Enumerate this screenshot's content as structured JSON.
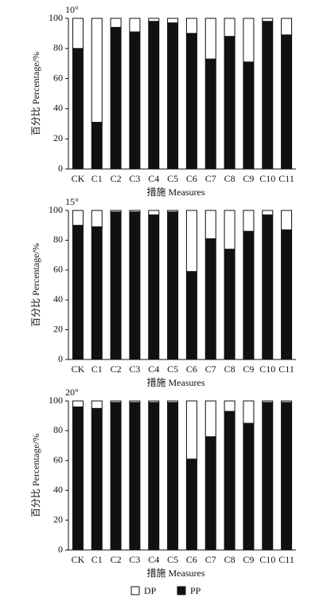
{
  "chart_data": [
    {
      "type": "bar",
      "stacked": true,
      "annotation": "10°",
      "x_label": "措施 Measures",
      "y_label": "百分比 Percentage/%",
      "categories": [
        "CK",
        "C1",
        "C2",
        "C3",
        "C4",
        "C5",
        "C6",
        "C7",
        "C8",
        "C9",
        "C10",
        "C11"
      ],
      "series": [
        {
          "color": "#111111",
          "values": [
            80,
            31,
            94,
            91,
            98,
            97,
            90,
            73,
            88,
            71,
            98,
            89
          ]
        },
        {
          "color": "#ffffff",
          "values": [
            20,
            69,
            6,
            9,
            2,
            3,
            10,
            27,
            12,
            29,
            2,
            11
          ]
        }
      ],
      "ylim": [
        0,
        100
      ],
      "yticks": [
        0,
        20,
        40,
        60,
        80,
        100
      ]
    },
    {
      "type": "bar",
      "stacked": true,
      "annotation": "15°",
      "x_label": "措施 Measures",
      "y_label": "百分比 Percentage/%",
      "categories": [
        "CK",
        "C1",
        "C2",
        "C3",
        "C4",
        "C5",
        "C6",
        "C7",
        "C8",
        "C9",
        "C10",
        "C11"
      ],
      "series": [
        {
          "color": "#111111",
          "values": [
            90,
            89,
            99,
            99,
            97,
            99,
            59,
            81,
            74,
            86,
            97,
            87
          ]
        },
        {
          "color": "#ffffff",
          "values": [
            10,
            11,
            1,
            1,
            3,
            1,
            41,
            19,
            26,
            14,
            3,
            13
          ]
        }
      ],
      "ylim": [
        0,
        100
      ],
      "yticks": [
        0,
        20,
        40,
        60,
        80,
        100
      ]
    },
    {
      "type": "bar",
      "stacked": true,
      "annotation": "20°",
      "x_label": "措施 Measures",
      "y_label": "百分比 Percentage/%",
      "categories": [
        "CK",
        "C1",
        "C2",
        "C3",
        "C4",
        "C5",
        "C6",
        "C7",
        "C8",
        "C9",
        "C10",
        "C11"
      ],
      "series": [
        {
          "name": "PP",
          "color": "#111111",
          "values": [
            96,
            95,
            99,
            99,
            99,
            99,
            61,
            76,
            93,
            85,
            99,
            99
          ]
        },
        {
          "name": "DP",
          "color": "#ffffff",
          "values": [
            4,
            5,
            1,
            1,
            1,
            1,
            39,
            24,
            7,
            15,
            1,
            1
          ]
        }
      ],
      "ylim": [
        0,
        100
      ],
      "yticks": [
        0,
        20,
        40,
        60,
        80,
        100
      ]
    }
  ]
}
